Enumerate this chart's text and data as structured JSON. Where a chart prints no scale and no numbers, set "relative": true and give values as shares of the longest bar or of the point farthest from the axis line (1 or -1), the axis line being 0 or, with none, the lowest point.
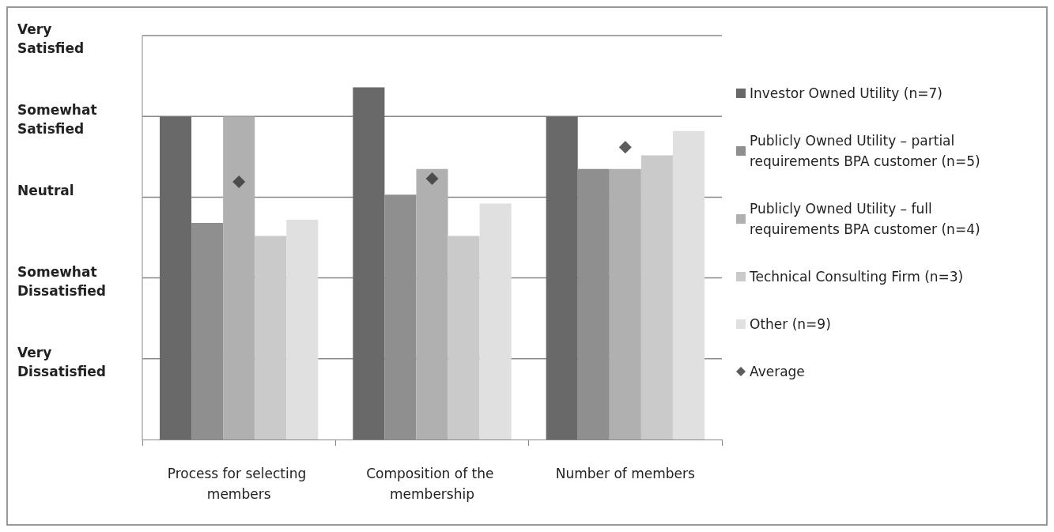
{
  "chart_data": {
    "type": "bar",
    "relative": true,
    "categories": [
      "Process for selecting members",
      "Composition of the membership",
      "Number of members"
    ],
    "annotations": [
      "Very Dissatisfied",
      "Somewhat Dissatisfied",
      "Neutral",
      "Somewhat Satisfied",
      "Very Satisfied"
    ],
    "grid": "y",
    "legend": "right",
    "series": [
      {
        "name": "Investor Owned Utility (n=7)",
        "color": "#696969",
        "values": [
          0.917,
          1,
          0.917
        ]
      },
      {
        "name": "Publicly Owned Utility – partial requirements BPA customer (n=5)",
        "color": "#8f8f8f",
        "values": [
          0.615,
          0.695,
          0.768
        ]
      },
      {
        "name": "Publicly Owned Utility – full requirements BPA customer (n=4)",
        "color": "#b0b0b0",
        "values": [
          0.917,
          0.768,
          0.768
        ]
      },
      {
        "name": "Technical Consulting Firm (n=3)",
        "color": "#cacaca",
        "values": [
          0.578,
          0.578,
          0.807
        ]
      },
      {
        "name": "Other (n=9)",
        "color": "#e0e0e0",
        "values": [
          0.624,
          0.67,
          0.876
        ]
      },
      {
        "name": "Average",
        "type": "scatter",
        "marker": "diamond",
        "color": "#333333",
        "x": [
          "Process for selecting members",
          "Composition of the membership",
          "Number of members"
        ],
        "values": [
          0.732,
          0.741,
          0.83
        ]
      }
    ]
  }
}
